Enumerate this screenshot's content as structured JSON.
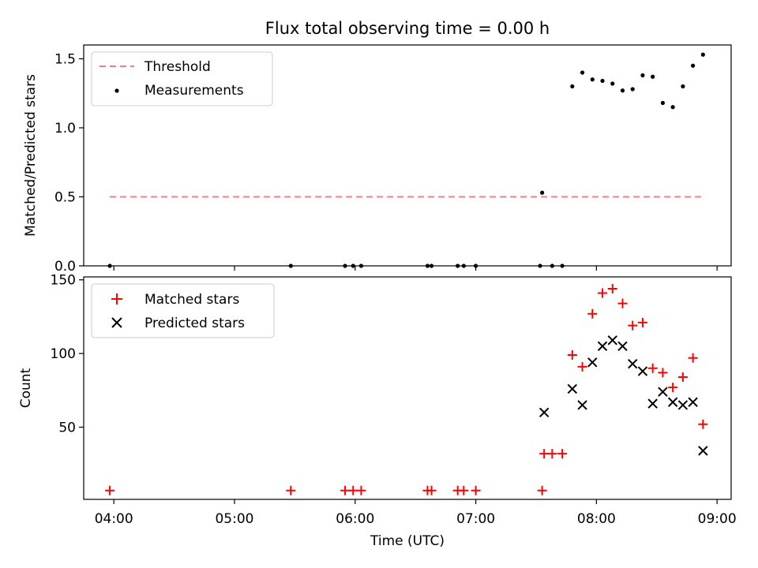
{
  "chart_data": [
    {
      "type": "scatter",
      "title": "Flux total observing time = 0.00 h",
      "xlabel": "",
      "ylabel": "Matched/Predicted stars",
      "xlim": [
        "03:45",
        "09:07"
      ],
      "ylim": [
        0,
        1.6
      ],
      "yticks": [
        0.0,
        0.5,
        1.0,
        1.5
      ],
      "ytick_labels": [
        "0.0",
        "0.5",
        "1.0",
        "1.5"
      ],
      "legend_position": "upper-left",
      "series": [
        {
          "name": "Threshold",
          "kind": "dashed-line",
          "color": "#f08080",
          "x": [
            "03:58",
            "08:53"
          ],
          "y": [
            0.5,
            0.5
          ]
        },
        {
          "name": "Measurements",
          "kind": "dots",
          "color": "#000000",
          "x": [
            "03:58",
            "05:28",
            "05:55",
            "05:59",
            "06:03",
            "06:36",
            "06:38",
            "06:51",
            "06:54",
            "07:00",
            "07:32",
            "07:33",
            "07:38",
            "07:43",
            "07:48",
            "07:53",
            "07:58",
            "08:03",
            "08:08",
            "08:13",
            "08:18",
            "08:23",
            "08:28",
            "08:33",
            "08:38",
            "08:43",
            "08:48",
            "08:53"
          ],
          "y": [
            0,
            0,
            0,
            0,
            0,
            0,
            0,
            0,
            0,
            0,
            0,
            0.53,
            0,
            0,
            1.3,
            1.4,
            1.35,
            1.34,
            1.32,
            1.27,
            1.28,
            1.38,
            1.37,
            1.18,
            1.15,
            1.3,
            1.45,
            1.53
          ]
        }
      ]
    },
    {
      "type": "scatter",
      "title": "",
      "xlabel": "Time (UTC)",
      "ylabel": "Count",
      "xlim": [
        "03:45",
        "09:07"
      ],
      "ylim": [
        1,
        152
      ],
      "xticks": [
        "04:00",
        "05:00",
        "06:00",
        "07:00",
        "08:00",
        "09:00"
      ],
      "yticks": [
        50,
        100,
        150
      ],
      "ytick_labels": [
        "50",
        "100",
        "150"
      ],
      "legend_position": "upper-left",
      "series": [
        {
          "name": "Matched stars",
          "marker": "plus",
          "color": "#ff0000",
          "x": [
            "03:58",
            "05:28",
            "05:55",
            "05:59",
            "06:03",
            "06:36",
            "06:38",
            "06:51",
            "06:54",
            "07:00",
            "07:33",
            "07:34",
            "07:38",
            "07:43",
            "07:48",
            "07:53",
            "07:58",
            "08:03",
            "08:08",
            "08:13",
            "08:18",
            "08:23",
            "08:28",
            "08:33",
            "08:38",
            "08:43",
            "08:48",
            "08:53"
          ],
          "y": [
            7,
            7,
            7,
            7,
            7,
            7,
            7,
            7,
            7,
            7,
            7,
            32,
            32,
            32,
            99,
            91,
            127,
            141,
            144,
            134,
            119,
            121,
            90,
            87,
            77,
            84,
            97,
            52
          ]
        },
        {
          "name": "Predicted stars",
          "marker": "x",
          "color": "#000000",
          "x": [
            "07:34",
            "07:48",
            "07:53",
            "07:58",
            "08:03",
            "08:08",
            "08:13",
            "08:18",
            "08:23",
            "08:28",
            "08:33",
            "08:38",
            "08:43",
            "08:48",
            "08:53"
          ],
          "y": [
            60,
            76,
            65,
            94,
            105,
            109,
            105,
            93,
            88,
            66,
            74,
            67,
            65,
            67,
            34
          ]
        }
      ]
    }
  ]
}
